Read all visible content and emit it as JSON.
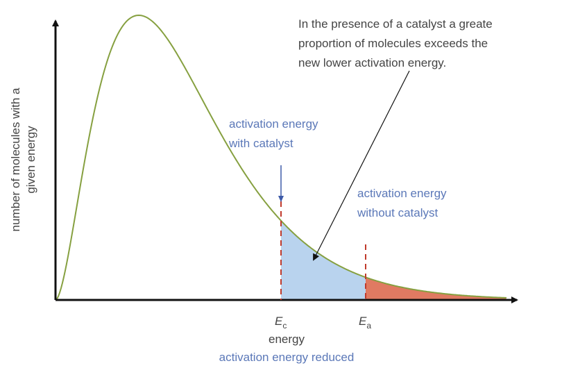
{
  "y_axis_label": [
    "number of molecules with a",
    "given energy"
  ],
  "x_axis_label": "energy",
  "caption": "activation energy reduced",
  "annotation": [
    "In the presence of a catalyst a greate",
    "proportion of molecules exceeds the",
    "new lower activation energy."
  ],
  "catalyst_label": [
    "activation energy",
    "with catalyst"
  ],
  "no_catalyst_label": [
    "activation energy",
    "without catalyst"
  ],
  "markers": [
    {
      "symbol": "E",
      "subscript": "c"
    },
    {
      "symbol": "E",
      "subscript": "a"
    }
  ]
}
